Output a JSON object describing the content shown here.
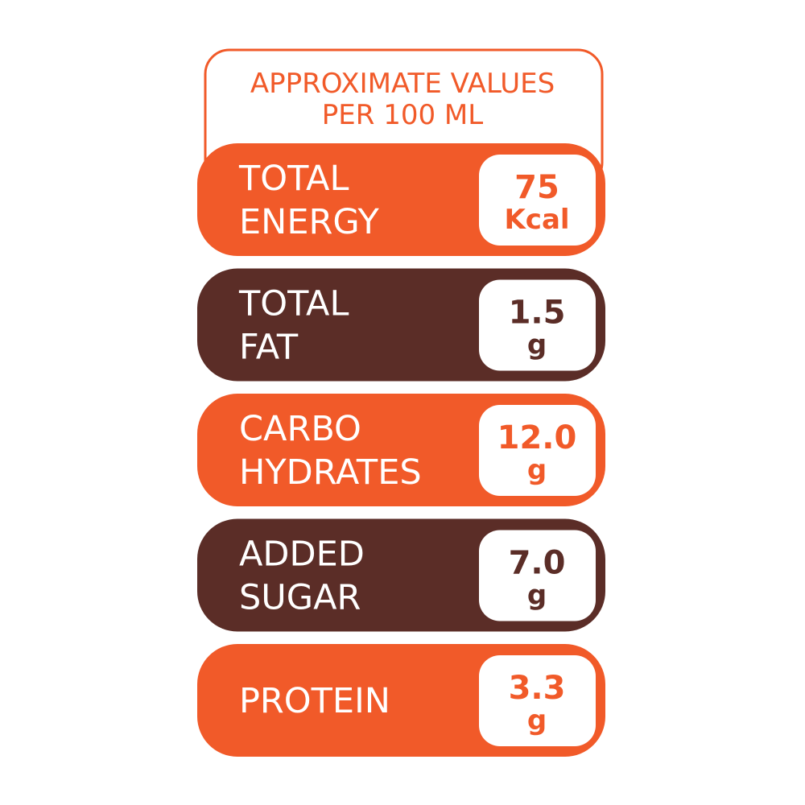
{
  "header": {
    "lines": [
      "APPROXIMATE VALUES",
      "PER 100 ML"
    ]
  },
  "items": [
    {
      "label": [
        "TOTAL",
        "ENERGY"
      ],
      "value": "75",
      "unit": "Kcal"
    },
    {
      "label": [
        "TOTAL",
        "FAT"
      ],
      "value": "1.5",
      "unit": "g"
    },
    {
      "label": [
        "CARBO",
        "HYDRATES"
      ],
      "value": "12.0",
      "unit": "g"
    },
    {
      "label": [
        "ADDED",
        "SUGAR"
      ],
      "value": "7.0",
      "unit": "g"
    },
    {
      "label": [
        "PROTEIN"
      ],
      "value": "3.3",
      "unit": "g"
    }
  ]
}
